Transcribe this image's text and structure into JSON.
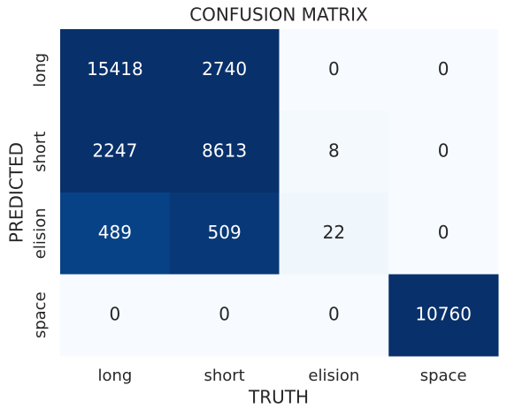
{
  "chart_data": {
    "type": "heatmap",
    "title": "CONFUSION MATRIX",
    "x_label": "TRUTH",
    "y_label": "PREDICTED",
    "x_categories": [
      "long",
      "short",
      "elision",
      "space"
    ],
    "y_categories": [
      "long",
      "short",
      "elision",
      "space"
    ],
    "values": [
      [
        15418,
        2740,
        0,
        0
      ],
      [
        2247,
        8613,
        8,
        0
      ],
      [
        489,
        509,
        22,
        0
      ],
      [
        0,
        0,
        0,
        10760
      ]
    ],
    "color_range": [
      0,
      525
    ],
    "colormap": [
      "#f7fbff",
      "#deebf7",
      "#c6dbef",
      "#9ecae1",
      "#6baed6",
      "#4292c6",
      "#2171b5",
      "#08519c",
      "#08306b"
    ],
    "text_colors": [
      "#262626",
      "#ffffff"
    ]
  }
}
